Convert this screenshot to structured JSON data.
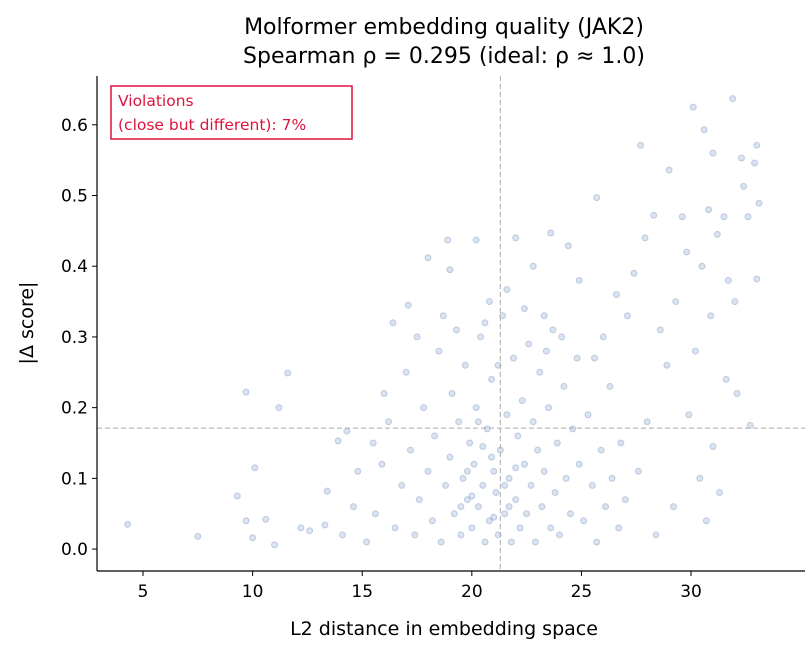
{
  "chart_data": {
    "type": "scatter",
    "title": "Molformer embedding quality (JAK2)",
    "subtitle": "Spearman ρ = 0.295  (ideal: ρ ≈ 1.0)",
    "xlabel": "L2 distance in embedding space",
    "ylabel": "|Δ score|",
    "xlim": [
      2.9,
      35.2
    ],
    "ylim": [
      -0.031,
      0.669
    ],
    "xticks": [
      5,
      10,
      15,
      20,
      25,
      30
    ],
    "yticks": [
      0.0,
      0.1,
      0.2,
      0.3,
      0.4,
      0.5,
      0.6
    ],
    "grid": false,
    "point_color": "#4c72b0",
    "point_alpha": 0.2,
    "reference_lines": {
      "x": 21.3,
      "y": 0.171,
      "color": "#aaaaaa",
      "style": "dashed"
    },
    "annotation": {
      "text_line1": "Violations",
      "text_line2": "(close but different): 7%",
      "color": "#dc143c",
      "position": "top-left"
    },
    "points": [
      [
        4.3,
        0.035
      ],
      [
        7.5,
        0.018
      ],
      [
        9.3,
        0.075
      ],
      [
        9.7,
        0.222
      ],
      [
        9.7,
        0.04
      ],
      [
        10.0,
        0.016
      ],
      [
        10.1,
        0.115
      ],
      [
        10.6,
        0.042
      ],
      [
        11.2,
        0.2
      ],
      [
        11.6,
        0.249
      ],
      [
        11.0,
        0.006
      ],
      [
        12.2,
        0.03
      ],
      [
        12.6,
        0.026
      ],
      [
        13.3,
        0.034
      ],
      [
        13.4,
        0.082
      ],
      [
        13.9,
        0.153
      ],
      [
        14.3,
        0.167
      ],
      [
        14.1,
        0.02
      ],
      [
        14.6,
        0.06
      ],
      [
        14.8,
        0.11
      ],
      [
        30.1,
        0.625
      ],
      [
        31.9,
        0.637
      ],
      [
        30.6,
        0.593
      ],
      [
        33.0,
        0.571
      ],
      [
        27.7,
        0.571
      ],
      [
        32.3,
        0.553
      ],
      [
        32.9,
        0.546
      ],
      [
        25.7,
        0.497
      ],
      [
        33.1,
        0.489
      ],
      [
        32.4,
        0.513
      ],
      [
        29.0,
        0.536
      ],
      [
        31.0,
        0.56
      ],
      [
        30.8,
        0.48
      ],
      [
        31.5,
        0.47
      ],
      [
        29.6,
        0.47
      ],
      [
        28.3,
        0.472
      ],
      [
        27.9,
        0.44
      ],
      [
        31.2,
        0.445
      ],
      [
        32.6,
        0.47
      ],
      [
        29.8,
        0.42
      ],
      [
        30.5,
        0.4
      ],
      [
        31.7,
        0.38
      ],
      [
        33.0,
        0.382
      ],
      [
        32.0,
        0.35
      ],
      [
        30.9,
        0.33
      ],
      [
        29.3,
        0.35
      ],
      [
        28.6,
        0.31
      ],
      [
        27.4,
        0.39
      ],
      [
        26.6,
        0.36
      ],
      [
        27.1,
        0.33
      ],
      [
        26.0,
        0.3
      ],
      [
        28.9,
        0.26
      ],
      [
        30.2,
        0.28
      ],
      [
        31.6,
        0.24
      ],
      [
        32.1,
        0.22
      ],
      [
        29.9,
        0.19
      ],
      [
        31.0,
        0.145
      ],
      [
        32.7,
        0.175
      ],
      [
        30.4,
        0.1
      ],
      [
        31.3,
        0.08
      ],
      [
        30.7,
        0.04
      ],
      [
        29.2,
        0.06
      ],
      [
        28.4,
        0.02
      ],
      [
        27.6,
        0.11
      ],
      [
        28.0,
        0.18
      ],
      [
        26.8,
        0.15
      ],
      [
        27.0,
        0.07
      ],
      [
        26.3,
        0.23
      ],
      [
        25.6,
        0.27
      ],
      [
        20.2,
        0.437
      ],
      [
        18.9,
        0.437
      ],
      [
        18.0,
        0.412
      ],
      [
        22.0,
        0.44
      ],
      [
        23.6,
        0.447
      ],
      [
        24.4,
        0.429
      ],
      [
        19.0,
        0.395
      ],
      [
        21.6,
        0.367
      ],
      [
        16.4,
        0.32
      ],
      [
        17.1,
        0.345
      ],
      [
        22.8,
        0.4
      ],
      [
        24.9,
        0.38
      ],
      [
        20.8,
        0.35
      ],
      [
        23.3,
        0.33
      ],
      [
        15.2,
        0.01
      ],
      [
        15.6,
        0.05
      ],
      [
        15.9,
        0.12
      ],
      [
        16.2,
        0.18
      ],
      [
        16.5,
        0.03
      ],
      [
        16.8,
        0.09
      ],
      [
        17.0,
        0.25
      ],
      [
        17.2,
        0.14
      ],
      [
        17.4,
        0.02
      ],
      [
        17.6,
        0.07
      ],
      [
        17.8,
        0.2
      ],
      [
        18.0,
        0.11
      ],
      [
        18.2,
        0.04
      ],
      [
        18.3,
        0.16
      ],
      [
        18.5,
        0.28
      ],
      [
        18.6,
        0.01
      ],
      [
        18.8,
        0.09
      ],
      [
        19.0,
        0.13
      ],
      [
        19.1,
        0.22
      ],
      [
        19.2,
        0.05
      ],
      [
        19.4,
        0.18
      ],
      [
        19.5,
        0.02
      ],
      [
        19.6,
        0.1
      ],
      [
        19.7,
        0.26
      ],
      [
        19.8,
        0.07
      ],
      [
        19.9,
        0.15
      ],
      [
        20.0,
        0.03
      ],
      [
        20.1,
        0.12
      ],
      [
        20.2,
        0.2
      ],
      [
        20.3,
        0.06
      ],
      [
        20.4,
        0.3
      ],
      [
        20.5,
        0.09
      ],
      [
        20.6,
        0.01
      ],
      [
        20.7,
        0.17
      ],
      [
        20.8,
        0.04
      ],
      [
        20.9,
        0.24
      ],
      [
        21.0,
        0.11
      ],
      [
        21.1,
        0.08
      ],
      [
        21.2,
        0.02
      ],
      [
        21.3,
        0.14
      ],
      [
        21.4,
        0.33
      ],
      [
        21.5,
        0.05
      ],
      [
        21.6,
        0.19
      ],
      [
        21.7,
        0.1
      ],
      [
        21.8,
        0.01
      ],
      [
        21.9,
        0.27
      ],
      [
        22.0,
        0.07
      ],
      [
        22.1,
        0.16
      ],
      [
        22.2,
        0.03
      ],
      [
        22.3,
        0.21
      ],
      [
        22.4,
        0.12
      ],
      [
        22.5,
        0.05
      ],
      [
        22.6,
        0.29
      ],
      [
        22.7,
        0.09
      ],
      [
        22.8,
        0.18
      ],
      [
        22.9,
        0.01
      ],
      [
        23.0,
        0.14
      ],
      [
        23.1,
        0.25
      ],
      [
        23.2,
        0.06
      ],
      [
        23.3,
        0.11
      ],
      [
        23.5,
        0.2
      ],
      [
        23.6,
        0.03
      ],
      [
        23.7,
        0.31
      ],
      [
        23.8,
        0.08
      ],
      [
        23.9,
        0.15
      ],
      [
        24.0,
        0.02
      ],
      [
        24.2,
        0.23
      ],
      [
        24.3,
        0.1
      ],
      [
        24.5,
        0.05
      ],
      [
        24.6,
        0.17
      ],
      [
        24.8,
        0.27
      ],
      [
        24.9,
        0.12
      ],
      [
        25.1,
        0.04
      ],
      [
        25.3,
        0.19
      ],
      [
        25.5,
        0.09
      ],
      [
        25.7,
        0.01
      ],
      [
        25.9,
        0.14
      ],
      [
        26.1,
        0.06
      ],
      [
        26.4,
        0.1
      ],
      [
        26.7,
        0.03
      ],
      [
        17.5,
        0.3
      ],
      [
        18.7,
        0.33
      ],
      [
        19.3,
        0.31
      ],
      [
        20.6,
        0.32
      ],
      [
        21.2,
        0.26
      ],
      [
        22.4,
        0.34
      ],
      [
        23.4,
        0.28
      ],
      [
        24.1,
        0.3
      ],
      [
        16.0,
        0.22
      ],
      [
        15.5,
        0.15
      ],
      [
        20.3,
        0.18
      ],
      [
        20.9,
        0.13
      ],
      [
        21.5,
        0.09
      ],
      [
        19.8,
        0.11
      ],
      [
        20.0,
        0.075
      ],
      [
        21.0,
        0.045
      ],
      [
        22.0,
        0.115
      ],
      [
        19.5,
        0.06
      ],
      [
        20.5,
        0.145
      ],
      [
        21.7,
        0.06
      ]
    ]
  }
}
